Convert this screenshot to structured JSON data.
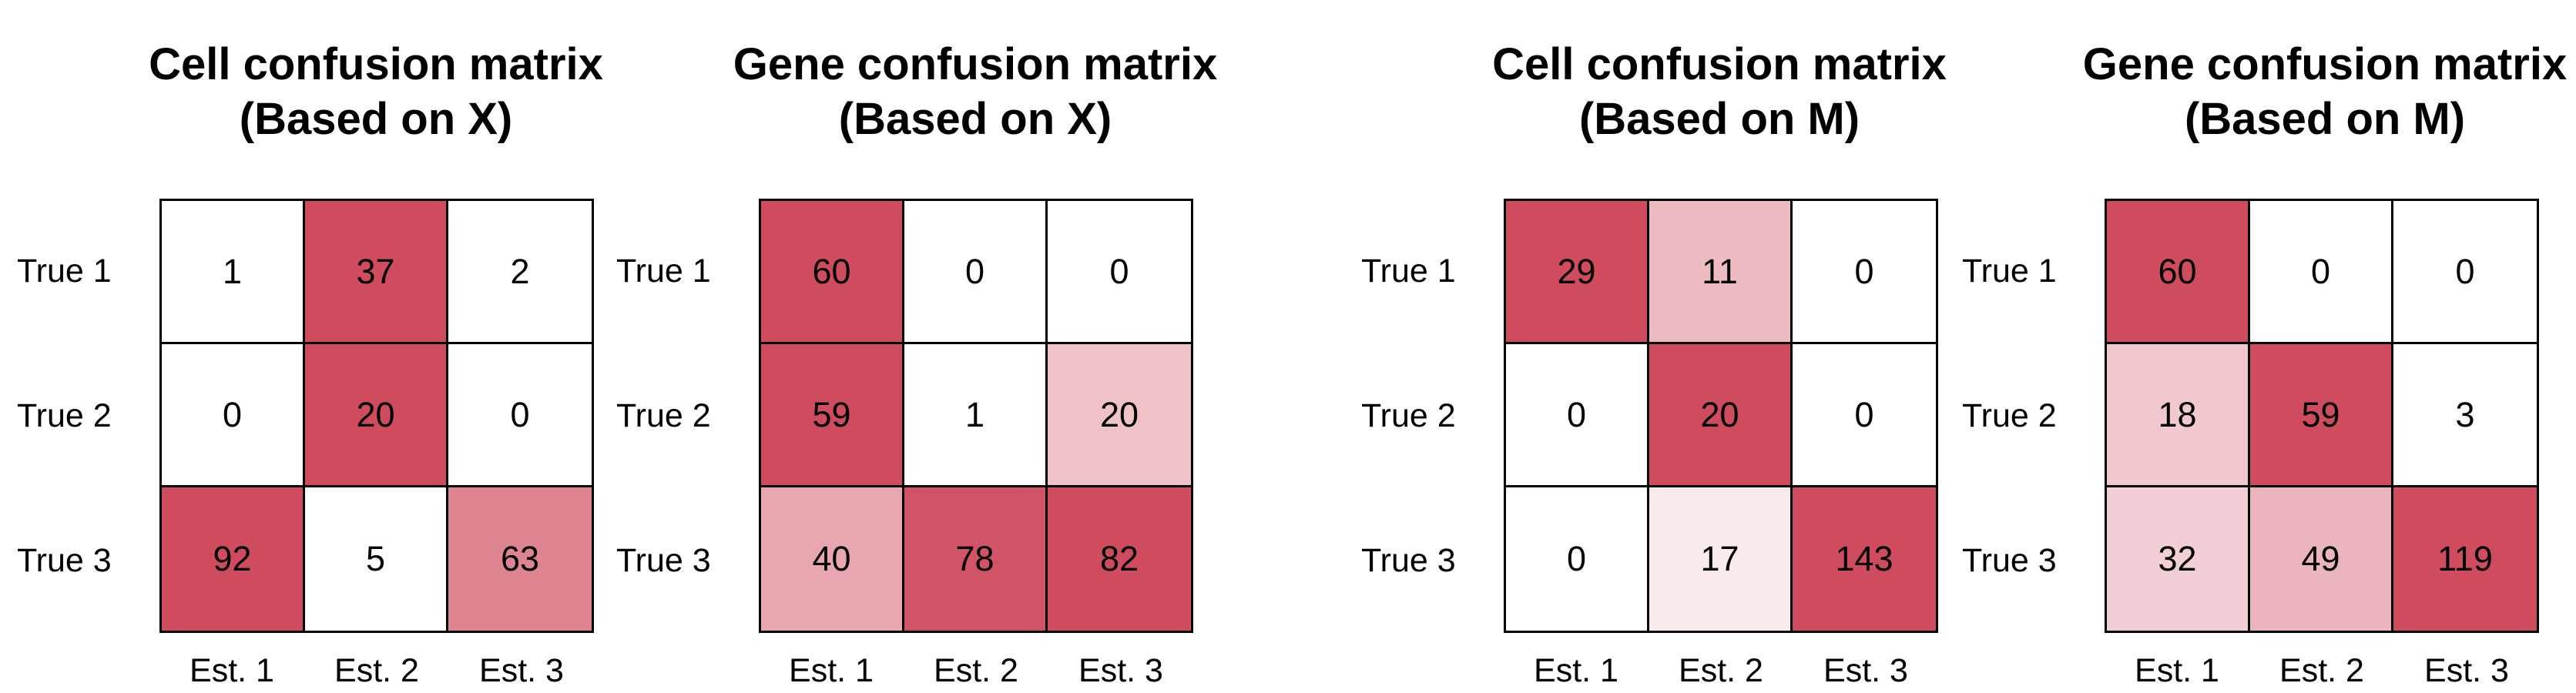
{
  "chart_data": [
    {
      "type": "heatmap",
      "title": "Cell confusion matrix\n(Based on X)",
      "title_lines": [
        "Cell confusion matrix",
        "(Based on X)"
      ],
      "rows": [
        "True 1",
        "True 2",
        "True 3"
      ],
      "columns": [
        "Est. 1",
        "Est. 2",
        "Est. 3"
      ],
      "values": [
        [
          1,
          37,
          2
        ],
        [
          0,
          20,
          0
        ],
        [
          92,
          5,
          63
        ]
      ]
    },
    {
      "type": "heatmap",
      "title": "Gene confusion matrix\n(Based on X)",
      "title_lines": [
        "Gene confusion matrix",
        "(Based on X)"
      ],
      "rows": [
        "True 1",
        "True 2",
        "True 3"
      ],
      "columns": [
        "Est. 1",
        "Est. 2",
        "Est. 3"
      ],
      "values": [
        [
          60,
          0,
          0
        ],
        [
          59,
          1,
          20
        ],
        [
          40,
          78,
          82
        ]
      ]
    },
    {
      "type": "heatmap",
      "title": "Cell confusion matrix\n(Based on M)",
      "title_lines": [
        "Cell confusion matrix",
        "(Based on M)"
      ],
      "rows": [
        "True 1",
        "True 2",
        "True 3"
      ],
      "columns": [
        "Est. 1",
        "Est. 2",
        "Est. 3"
      ],
      "values": [
        [
          29,
          11,
          0
        ],
        [
          0,
          20,
          0
        ],
        [
          0,
          17,
          143
        ]
      ]
    },
    {
      "type": "heatmap",
      "title": "Gene confusion matrix\n(Based on M)",
      "title_lines": [
        "Gene confusion matrix",
        "(Based on M)"
      ],
      "rows": [
        "True 1",
        "True 2",
        "True 3"
      ],
      "columns": [
        "Est. 1",
        "Est. 2",
        "Est. 3"
      ],
      "values": [
        [
          60,
          0,
          0
        ],
        [
          18,
          59,
          3
        ],
        [
          32,
          49,
          119
        ]
      ]
    }
  ],
  "colors": {
    "high": "#cf4b5e",
    "low": "#ffffff"
  }
}
